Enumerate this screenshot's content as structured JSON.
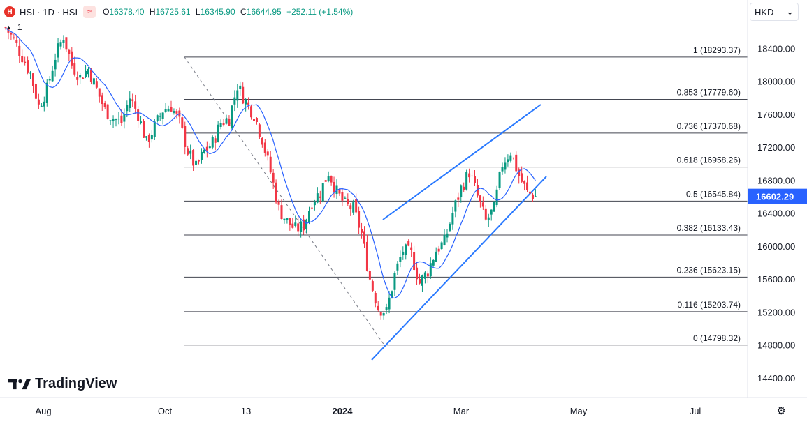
{
  "header": {
    "badge_letter": "H",
    "symbol": "HSI · 1D · HSI",
    "approx_glyph": "≈",
    "ohlc": [
      {
        "label": "O",
        "value": "16378.40"
      },
      {
        "label": "H",
        "value": "16725.61"
      },
      {
        "label": "L",
        "value": "16345.90"
      },
      {
        "label": "C",
        "value": "16644.95"
      },
      {
        "label": "",
        "value": "+252.11 (+1.54%)"
      }
    ],
    "indicator_count": "1",
    "currency": "HKD"
  },
  "colors": {
    "up": "#089981",
    "down": "#f23645",
    "ma": "#2962ff",
    "channel": "#2979ff",
    "fib": "#434651",
    "last_price_bg": "#2962ff"
  },
  "branding": {
    "name": "TradingView"
  },
  "icons": {
    "settings": "settings-icon",
    "collapse": "chevron-icon",
    "currency_dropdown": "chevron-down-icon"
  },
  "chart_data": {
    "type": "candlestick",
    "y_ticks": [
      "18400.00",
      "18000.00",
      "17600.00",
      "17200.00",
      "16800.00",
      "16400.00",
      "16000.00",
      "15600.00",
      "15200.00",
      "14800.00",
      "14400.00"
    ],
    "x_ticks": [
      "Aug",
      "Oct",
      "13",
      "2024",
      "Mar",
      "May",
      "Jul"
    ],
    "last_price": "16602.29",
    "fib_levels": [
      {
        "ratio": "1",
        "price": 18293.37,
        "label": "1 (18293.37)"
      },
      {
        "ratio": "0.853",
        "price": 17779.6,
        "label": "0.853 (17779.60)"
      },
      {
        "ratio": "0.736",
        "price": 17370.68,
        "label": "0.736 (17370.68)"
      },
      {
        "ratio": "0.618",
        "price": 16958.26,
        "label": "0.618 (16958.26)"
      },
      {
        "ratio": "0.5",
        "price": 16545.84,
        "label": "0.5 (16545.84)"
      },
      {
        "ratio": "0.382",
        "price": 16133.43,
        "label": "0.382 (16133.43)"
      },
      {
        "ratio": "0.236",
        "price": 15623.15,
        "label": "0.236 (15623.15)"
      },
      {
        "ratio": "0.116",
        "price": 15203.74,
        "label": "0.116 (15203.74)"
      },
      {
        "ratio": "0",
        "price": 14798.32,
        "label": "0 (14798.32)"
      }
    ],
    "ylim": [
      14200,
      18800
    ],
    "close_path": [
      [
        0,
        18650
      ],
      [
        3,
        18500
      ],
      [
        6,
        18300
      ],
      [
        9,
        18100
      ],
      [
        12,
        17700
      ],
      [
        15,
        17900
      ],
      [
        18,
        18300
      ],
      [
        21,
        18550
      ],
      [
        24,
        18200
      ],
      [
        27,
        18050
      ],
      [
        30,
        18150
      ],
      [
        33,
        17900
      ],
      [
        36,
        17650
      ],
      [
        39,
        17550
      ],
      [
        42,
        17500
      ],
      [
        45,
        17800
      ],
      [
        48,
        17600
      ],
      [
        51,
        17250
      ],
      [
        54,
        17450
      ],
      [
        57,
        17650
      ],
      [
        60,
        17700
      ],
      [
        63,
        17500
      ],
      [
        66,
        17150
      ],
      [
        69,
        16950
      ],
      [
        72,
        17150
      ],
      [
        75,
        17250
      ],
      [
        78,
        17500
      ],
      [
        81,
        17550
      ],
      [
        84,
        17950
      ],
      [
        87,
        17750
      ],
      [
        90,
        17600
      ],
      [
        93,
        17300
      ],
      [
        96,
        16900
      ],
      [
        99,
        16450
      ],
      [
        102,
        16300
      ],
      [
        105,
        16200
      ],
      [
        108,
        16250
      ],
      [
        111,
        16550
      ],
      [
        114,
        16650
      ],
      [
        117,
        16900
      ],
      [
        120,
        16650
      ],
      [
        123,
        16500
      ],
      [
        126,
        16450
      ],
      [
        129,
        16150
      ],
      [
        132,
        15600
      ],
      [
        135,
        15250
      ],
      [
        138,
        15200
      ],
      [
        141,
        15650
      ],
      [
        144,
        15950
      ],
      [
        147,
        15900
      ],
      [
        150,
        15550
      ],
      [
        153,
        15700
      ],
      [
        156,
        15950
      ],
      [
        159,
        16050
      ],
      [
        162,
        16400
      ],
      [
        165,
        16700
      ],
      [
        168,
        16900
      ],
      [
        171,
        16600
      ],
      [
        174,
        16300
      ],
      [
        177,
        16450
      ],
      [
        180,
        17000
      ],
      [
        183,
        17150
      ],
      [
        186,
        16850
      ],
      [
        189,
        16650
      ],
      [
        192,
        16602
      ]
    ]
  }
}
